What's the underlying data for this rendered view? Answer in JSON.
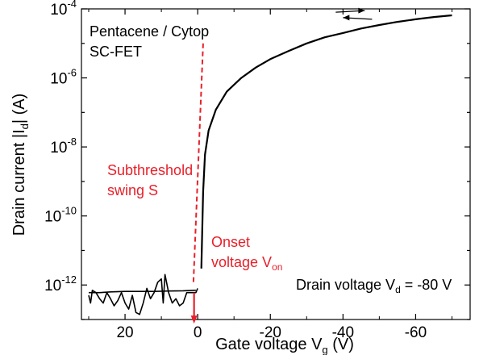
{
  "chart_data": {
    "type": "line",
    "xlabel": "Gate voltage V",
    "xlabel_sub": "g",
    "xlabel_unit": "(V)",
    "ylabel_pre": "Drain current |I",
    "ylabel_sub": "d",
    "ylabel_post": "| (A)",
    "x_axis_reversed": true,
    "xlim": [
      32,
      -75
    ],
    "y_scale": "log",
    "ylim": [
      1e-13,
      0.0001
    ],
    "x_ticks": [
      20,
      0,
      -20,
      -40,
      -60
    ],
    "x_tick_labels": [
      "20",
      "0",
      "-20",
      "-40",
      "-60"
    ],
    "y_ticks": [
      1e-12,
      1e-10,
      1e-08,
      1e-06,
      0.0001
    ],
    "y_tick_labels": [
      {
        "base": "10",
        "exp": "-12"
      },
      {
        "base": "10",
        "exp": "-10"
      },
      {
        "base": "10",
        "exp": "-8"
      },
      {
        "base": "10",
        "exp": "-6"
      },
      {
        "base": "10",
        "exp": "-4"
      }
    ],
    "grid": false,
    "series": [
      {
        "color": "#000000",
        "x": [
          -1,
          -1.5,
          -2,
          -3,
          -5,
          -8,
          -12,
          -16,
          -20,
          -25,
          -30,
          -35,
          -40,
          -45,
          -50,
          -55,
          -60,
          -65,
          -70
        ],
        "y": [
          3e-12,
          5e-10,
          6e-09,
          3e-08,
          1.2e-07,
          4e-07,
          1e-06,
          2e-06,
          3.5e-06,
          6e-06,
          1e-05,
          1.5e-05,
          2e-05,
          2.7e-05,
          3.4e-05,
          4.2e-05,
          5e-05,
          5.8e-05,
          6.5e-05
        ]
      },
      {
        "color": "#000000",
        "x": [
          30,
          29.5,
          29,
          28,
          27,
          26,
          25,
          24,
          23,
          22,
          21,
          20,
          19,
          18,
          17,
          16,
          15,
          14,
          13,
          12,
          11,
          10,
          9.5,
          9,
          8,
          7,
          6,
          5,
          4,
          3,
          2,
          1,
          0.5,
          0
        ],
        "y": [
          5e-13,
          3e-13,
          7e-13,
          6e-13,
          4e-13,
          3e-13,
          6e-13,
          4e-13,
          2.5e-13,
          3.5e-13,
          6e-13,
          3e-13,
          2e-13,
          5e-13,
          1.6e-13,
          1.4e-13,
          3e-13,
          8e-13,
          4e-13,
          6e-13,
          1.2e-12,
          1.5e-12,
          3e-13,
          2e-12,
          6e-13,
          3e-13,
          4e-13,
          2.5e-13,
          3e-13,
          6e-13,
          6e-13,
          6e-13,
          6e-13,
          8e-13
        ]
      },
      {
        "color": "#000000",
        "x": [
          30,
          27,
          24,
          20,
          16,
          12,
          8,
          4,
          1,
          0.5
        ],
        "y": [
          6e-13,
          6e-13,
          6.3e-13,
          6.5e-13,
          6.5e-13,
          6.5e-13,
          6.7e-13,
          6.8e-13,
          7e-13,
          7e-13
        ]
      }
    ],
    "fit_line": {
      "color": "#e8202a",
      "x": [
        -1.5,
        1.2
      ],
      "y": [
        1e-05,
        1e-12
      ]
    },
    "onset_marker": {
      "color": "#e8202a",
      "x": 1,
      "y_from": 6e-13,
      "y_to": 8e-14
    },
    "hysteresis_arrows": {
      "forward": {
        "x_from": -38,
        "x_to": -46,
        "y": 8e-05
      },
      "backward": {
        "x_from": -48,
        "x_to": -40,
        "y": 5e-05
      }
    },
    "annotations": {
      "device_line1": "Pentacene / Cytop",
      "device_line2": "SC-FET",
      "subthreshold_line1": "Subthreshold",
      "subthreshold_line2": "swing S",
      "onset_line1": "Onset",
      "onset_line2": "voltage V",
      "onset_sub": "on",
      "drain_text": "Drain voltage V",
      "drain_sub": "d",
      "drain_value": " = -80 V"
    },
    "colors": {
      "red": "#e8202a",
      "black": "#000000"
    }
  }
}
